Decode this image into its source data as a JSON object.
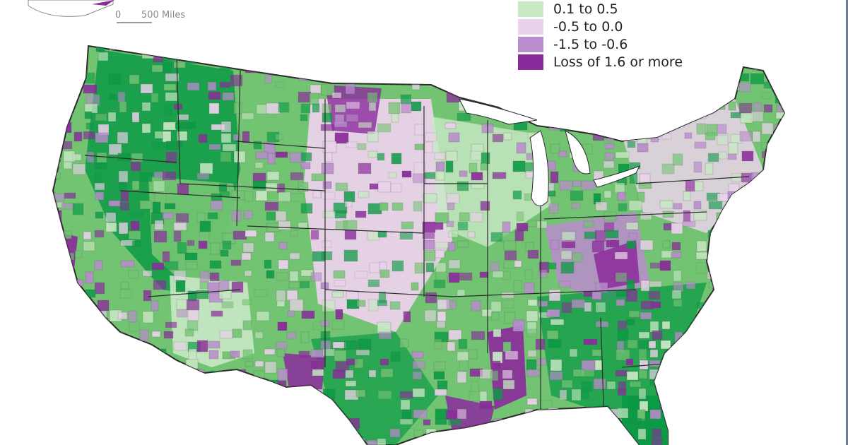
{
  "scale": {
    "zero_label": "0",
    "distance_label": "500 Miles"
  },
  "legend": {
    "items": [
      {
        "label": "0.1 to 0.5",
        "color": "#c9e8c5"
      },
      {
        "label": "-0.5 to 0.0",
        "color": "#ead3ea"
      },
      {
        "label": "-1.5 to -0.6",
        "color": "#b98ccd"
      },
      {
        "label": "Loss of 1.6 or more",
        "color": "#8b2a9c"
      }
    ]
  },
  "map": {
    "colors": {
      "gain_high": "#0c9b45",
      "gain_mid": "#72c472",
      "gain_low": "#c9e8c5",
      "loss_low": "#ead3ea",
      "loss_mid": "#b98ccd",
      "loss_high": "#8b2a9c",
      "border": "#2b2b2b"
    }
  }
}
